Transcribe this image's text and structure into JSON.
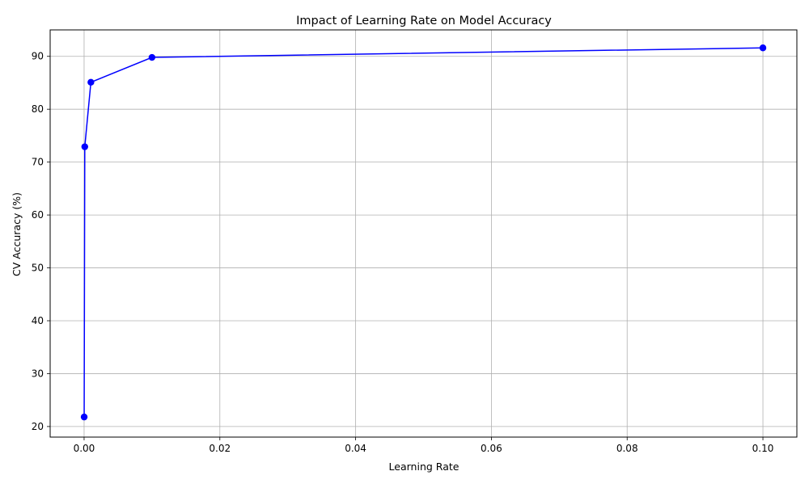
{
  "chart_data": {
    "type": "line",
    "title": "Impact of Learning Rate on Model Accuracy",
    "xlabel": "Learning Rate",
    "ylabel": "CV Accuracy (%)",
    "xlim": [
      -0.005,
      0.105
    ],
    "ylim": [
      18,
      95
    ],
    "xticks": [
      0.0,
      0.02,
      0.04,
      0.06,
      0.08,
      0.1
    ],
    "xtick_labels": [
      "0.00",
      "0.02",
      "0.04",
      "0.06",
      "0.08",
      "0.10"
    ],
    "yticks": [
      20,
      30,
      40,
      50,
      60,
      70,
      80,
      90
    ],
    "ytick_labels": [
      "20",
      "30",
      "40",
      "50",
      "60",
      "70",
      "80",
      "90"
    ],
    "grid": true,
    "legend": "none",
    "series": [
      {
        "color": "#0000ff",
        "marker": "circle",
        "x": [
          1e-05,
          0.0001,
          0.001,
          0.01,
          0.1
        ],
        "y": [
          21.8,
          72.9,
          85.1,
          89.8,
          91.6
        ]
      }
    ]
  }
}
